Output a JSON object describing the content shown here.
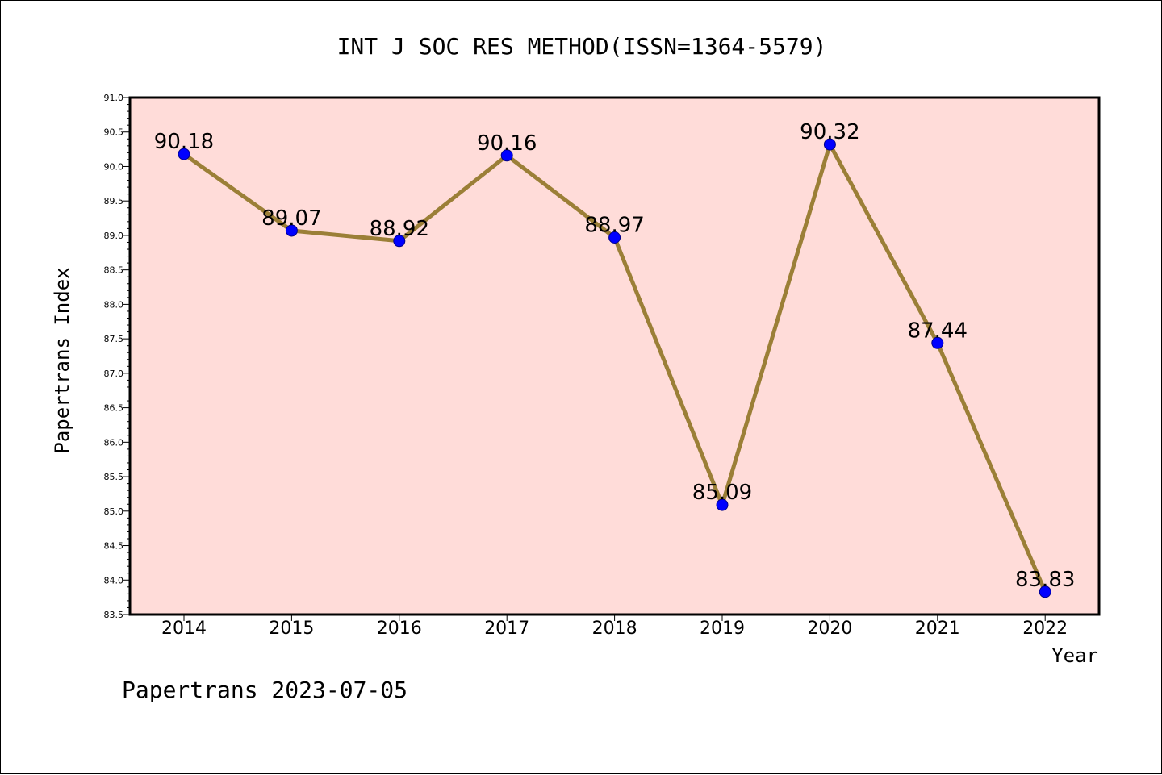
{
  "chart_data": {
    "type": "line",
    "title": "INT J SOC RES METHOD(ISSN=1364-5579)",
    "xlabel": "Year",
    "ylabel": "Papertrans Index",
    "categories": [
      "2014",
      "2015",
      "2016",
      "2017",
      "2018",
      "2019",
      "2020",
      "2021",
      "2022"
    ],
    "series": [
      {
        "values": [
          90.18,
          89.07,
          88.92,
          90.16,
          88.97,
          85.09,
          90.32,
          87.44,
          83.83
        ],
        "labels": [
          "90.18",
          "89.07",
          "88.92",
          "90.16",
          "88.97",
          "85.09",
          "90.32",
          "87.44",
          "83.83"
        ],
        "line_color": "#9b7f37",
        "marker_color": "#0000ff"
      }
    ],
    "ylim": [
      83.5,
      91.0
    ],
    "yticks": [
      "83.5",
      "84.0",
      "84.5",
      "85.0",
      "85.5",
      "86.0",
      "86.5",
      "87.0",
      "87.5",
      "88.0",
      "88.5",
      "89.0",
      "89.5",
      "90.0",
      "90.5",
      "91.0"
    ],
    "grid": false,
    "plot_background": "#ffdcd9"
  },
  "footer": "Papertrans 2023-07-05"
}
